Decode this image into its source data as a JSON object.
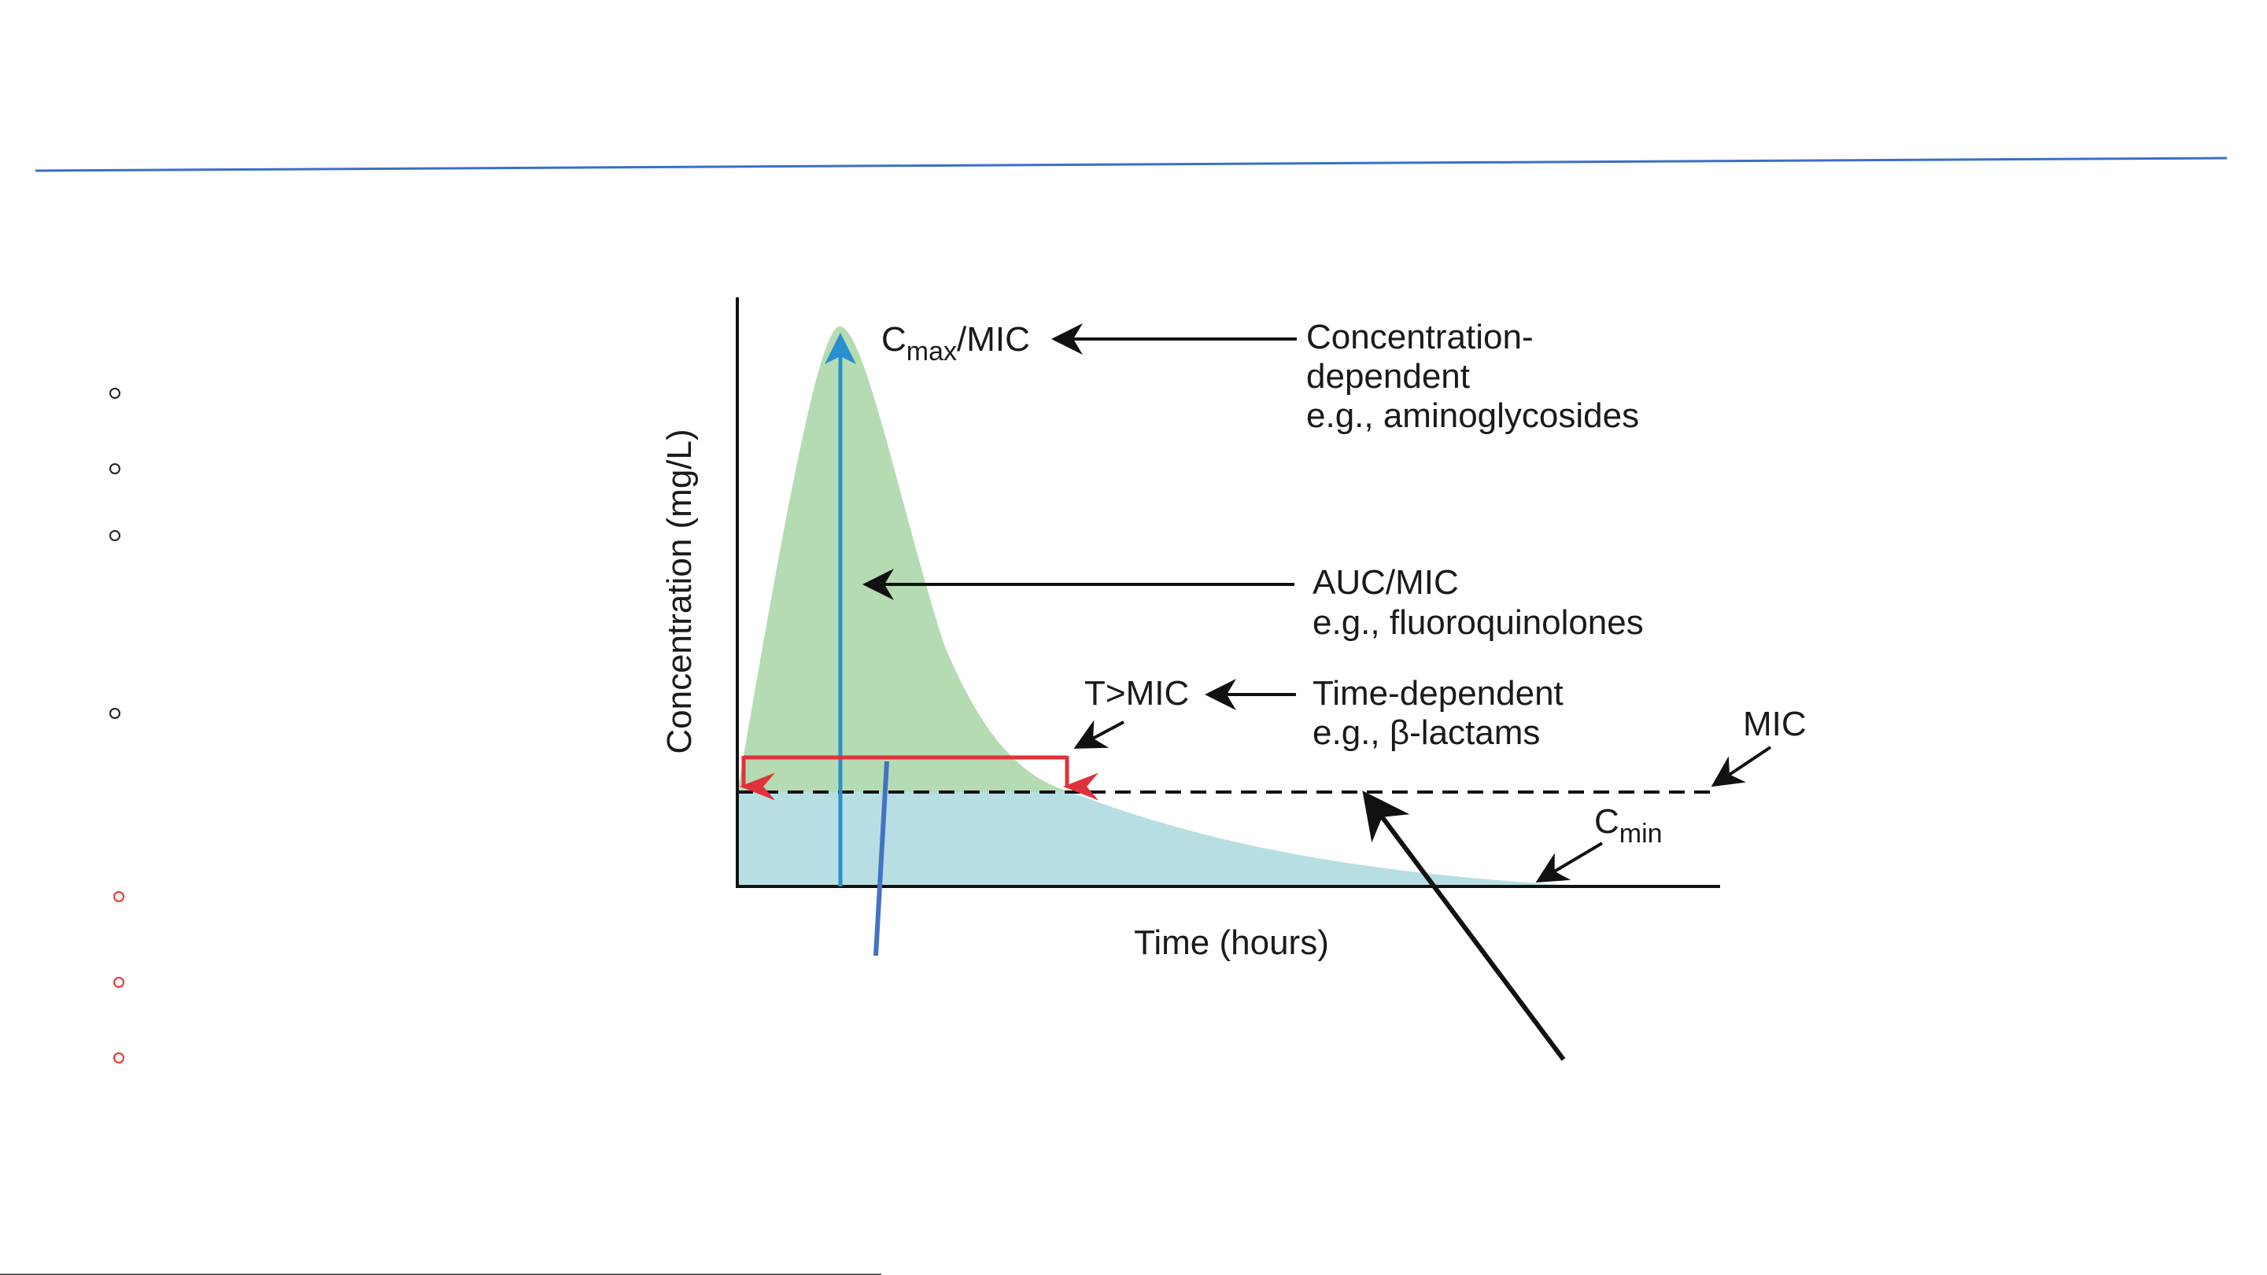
{
  "diagram": {
    "y_axis_label": "Concentration (mg/L)",
    "x_axis_label": "Time (hours)",
    "cmax_label": {
      "base": "C",
      "sub": "max",
      "suffix": "/MIC"
    },
    "concentration_dependent": {
      "line1": "Concentration-",
      "line2": "dependent",
      "line3": "e.g., aminoglycosides"
    },
    "auc_mic": {
      "line1": "AUC/MIC",
      "line2": "e.g., fluoroquinolones"
    },
    "t_mic_label": "T>MIC",
    "time_dependent": {
      "line1": "Time-dependent",
      "line2": "e.g., β-lactams"
    },
    "mic_label": "MIC",
    "cmin_label": {
      "base": "C",
      "sub": "min"
    }
  },
  "colors": {
    "accent_line": "#3b6fc7",
    "peak_fill": "#b5dbb2",
    "trough_fill": "#b7dfe3",
    "cmax_arrow": "#2a8fcf",
    "t_mic_bracket": "#e0323a",
    "red_bullet": "#e8332a",
    "black": "#111111"
  },
  "bullets": {
    "black_count": 4,
    "red_count": 3
  }
}
